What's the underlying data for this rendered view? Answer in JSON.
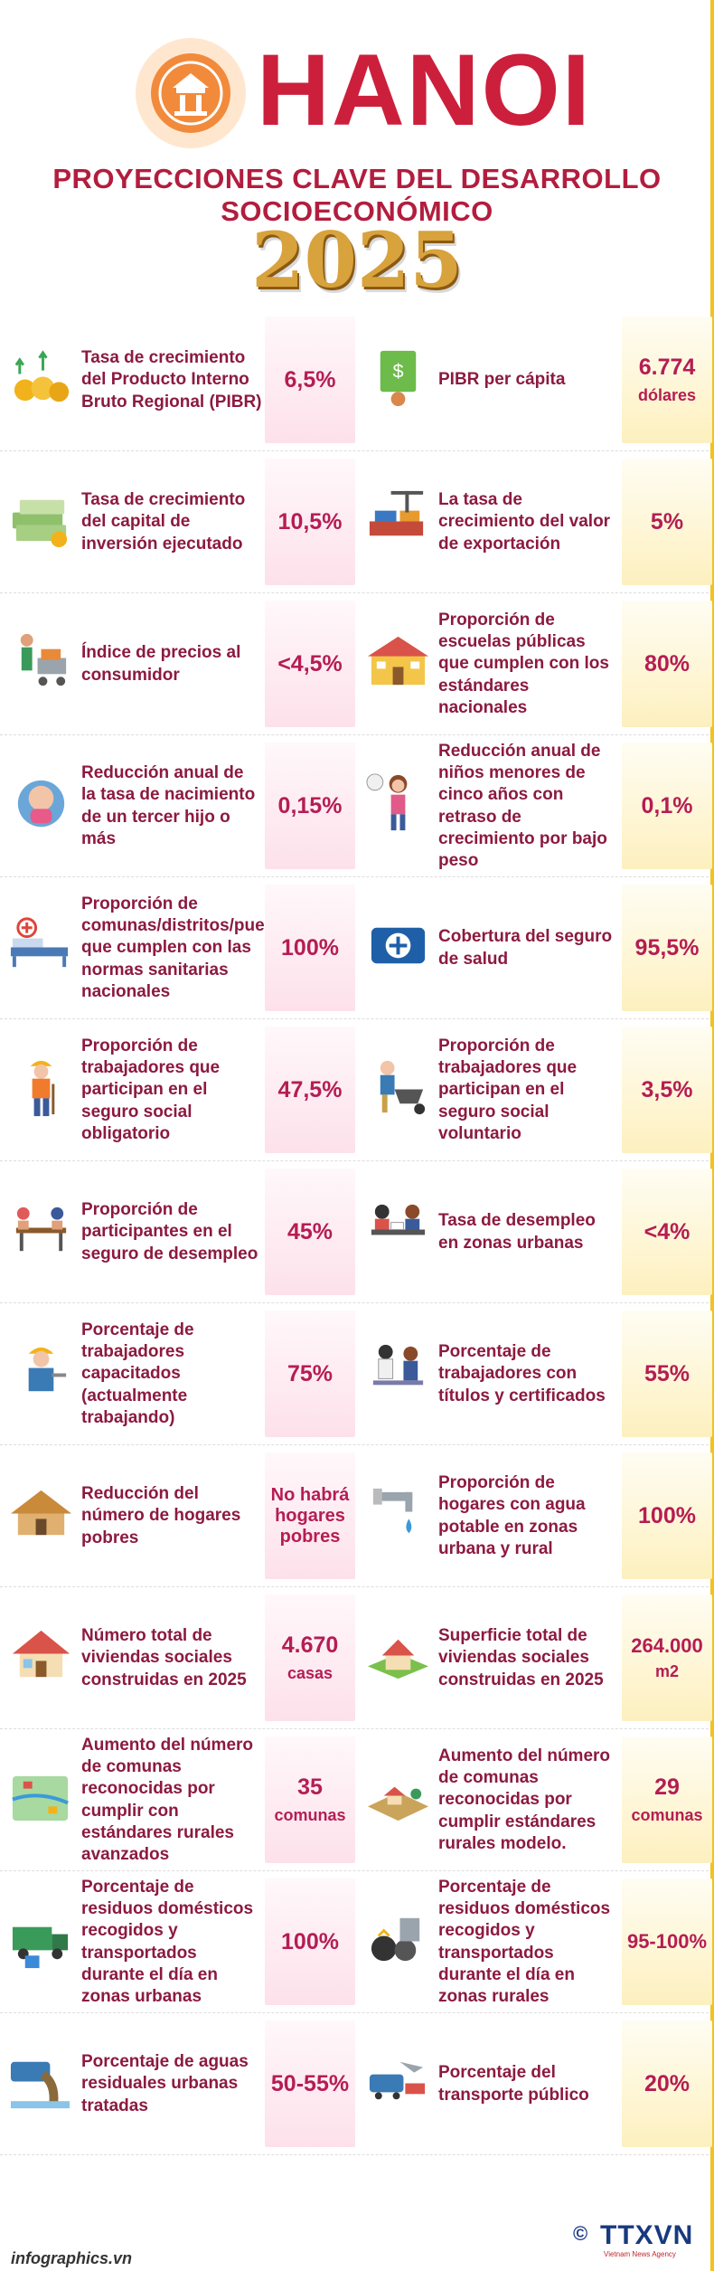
{
  "header": {
    "city": "HANOI",
    "headline": "PROYECCIONES CLAVE DEL DESARROLLO SOCIOECONÓMICO",
    "year": "2025"
  },
  "colors": {
    "label": "#8c1a3f",
    "value": "#b51d53",
    "pink_box": "#fde1ea",
    "yellow_box": "#fdf0bf",
    "accent": "#cc1f3c",
    "gold": "#d8a23c"
  },
  "rows": [
    {
      "left": {
        "icon": "coins-growth-icon",
        "label": "Tasa de crecimiento del Producto Interno Bruto Regional (PIBR)",
        "value": "6,5%",
        "unit": ""
      },
      "right": {
        "icon": "per-capita-money-icon",
        "label": "PIBR per cápita",
        "value": "6.774",
        "unit": "dólares"
      }
    },
    {
      "left": {
        "icon": "money-stack-icon",
        "label": "Tasa de crecimiento del capital de inversión ejecutado",
        "value": "10,5%",
        "unit": ""
      },
      "right": {
        "icon": "export-containers-icon",
        "label": "La tasa de crecimiento del valor de exportación",
        "value": "5%",
        "unit": ""
      }
    },
    {
      "left": {
        "icon": "shopping-cart-icon",
        "label": "Índice de precios al consumidor",
        "value": "<4,5%",
        "unit": ""
      },
      "right": {
        "icon": "school-building-icon",
        "label": "Proporción de escuelas públicas que cumplen con los estándares nacionales",
        "value": "80%",
        "unit": ""
      }
    },
    {
      "left": {
        "icon": "baby-icon",
        "label": "Reducción anual de la tasa de nacimiento de un tercer hijo o más",
        "value": "0,15%",
        "unit": ""
      },
      "right": {
        "icon": "child-icon",
        "label": "Reducción anual de niños menores de cinco años con retraso de crecimiento por bajo peso",
        "value": "0,1%",
        "unit": ""
      }
    },
    {
      "left": {
        "icon": "hospital-bed-icon",
        "label": "Proporción de comunas/distritos/pueblos que cumplen con las normas sanitarias nacionales",
        "value": "100%",
        "unit": ""
      },
      "right": {
        "icon": "health-insurance-icon",
        "label": "Cobertura del seguro de salud",
        "value": "95,5%",
        "unit": ""
      }
    },
    {
      "left": {
        "icon": "construction-worker-icon",
        "label": "Proporción de trabajadores que participan en el seguro social obligatorio",
        "value": "47,5%",
        "unit": ""
      },
      "right": {
        "icon": "wheelbarrow-worker-icon",
        "label": "Proporción de trabajadores que participan en el seguro social voluntario",
        "value": "3,5%",
        "unit": ""
      }
    },
    {
      "left": {
        "icon": "meeting-desk-icon",
        "label": "Proporción de participantes en el seguro de desempleo",
        "value": "45%",
        "unit": ""
      },
      "right": {
        "icon": "interview-icon",
        "label": "Tasa de desempleo en zonas urbanas",
        "value": "<4%",
        "unit": ""
      }
    },
    {
      "left": {
        "icon": "technician-icon",
        "label": "Porcentaje de trabajadores capacitados (actualmente trabajando)",
        "value": "75%",
        "unit": ""
      },
      "right": {
        "icon": "office-workers-icon",
        "label": "Porcentaje de trabajadores con títulos y certificados",
        "value": "55%",
        "unit": ""
      }
    },
    {
      "left": {
        "icon": "hut-icon",
        "label": "Reducción del número de hogares pobres",
        "value": "No habrá hogares pobres",
        "unit": ""
      },
      "right": {
        "icon": "water-tap-icon",
        "label": "Proporción de hogares con agua potable en zonas urbana y rural",
        "value": "100%",
        "unit": ""
      }
    },
    {
      "left": {
        "icon": "house-icon",
        "label": "Número total de viviendas sociales construidas en 2025",
        "value": "4.670",
        "unit": "casas"
      },
      "right": {
        "icon": "house-land-icon",
        "label": "Superficie total de viviendas sociales construidas en 2025",
        "value": "264.000",
        "unit": "m2"
      }
    },
    {
      "left": {
        "icon": "rural-map-icon",
        "label": "Aumento del número de comunas reconocidas por cumplir con estándares rurales avanzados",
        "value": "35",
        "unit": "comunas"
      },
      "right": {
        "icon": "farm-village-icon",
        "label": "Aumento del número de comunas reconocidas por cumplir estándares rurales modelo.",
        "value": "29",
        "unit": "comunas"
      }
    },
    {
      "left": {
        "icon": "garbage-truck-icon",
        "label": "Porcentaje de residuos domésticos recogidos y transportados durante el día en zonas urbanas",
        "value": "100%",
        "unit": ""
      },
      "right": {
        "icon": "garbage-bags-icon",
        "label": "Porcentaje de residuos domésticos recogidos y transportados durante el día en zonas rurales",
        "value": "95-100%",
        "unit": ""
      }
    },
    {
      "left": {
        "icon": "wastewater-pipe-icon",
        "label": "Porcentaje de aguas residuales urbanas tratadas",
        "value": "50-55%",
        "unit": ""
      },
      "right": {
        "icon": "public-transport-icon",
        "label": "Porcentaje del transporte público",
        "value": "20%",
        "unit": ""
      }
    }
  ],
  "footer": {
    "site": "infographics.vn",
    "copyright": "©",
    "logo": "TTXVN",
    "logo_sub": "Vietnam News Agency"
  }
}
